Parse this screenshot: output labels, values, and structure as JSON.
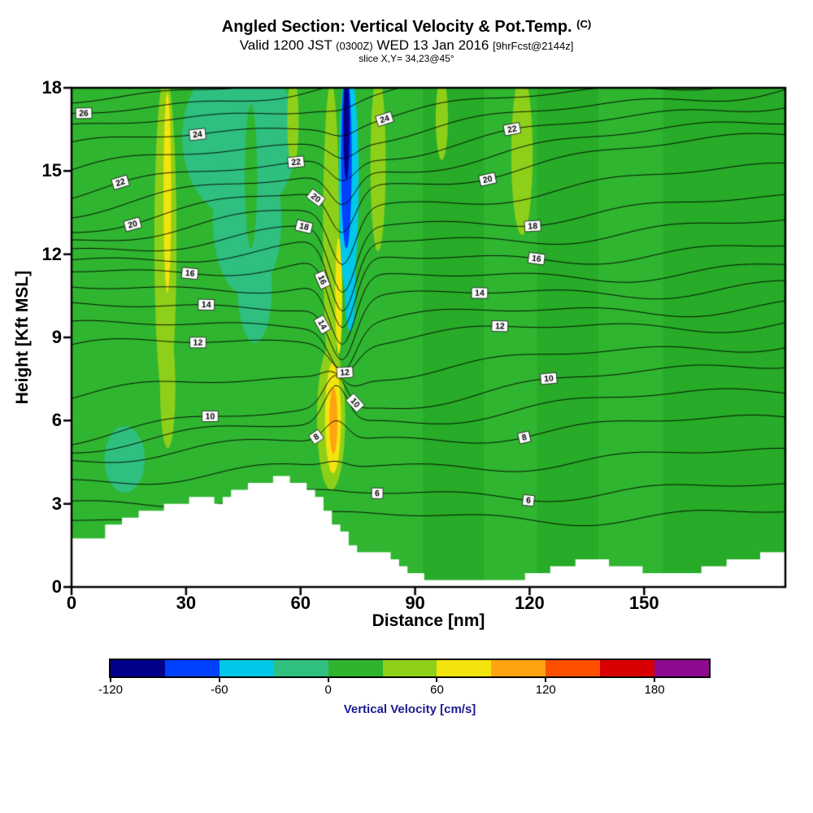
{
  "header": {
    "title": "Angled Section: Vertical Velocity & Pot.Temp.",
    "title_unit": "(C)",
    "valid_main_1": "Valid 1200 JST",
    "valid_small_1": "(0300Z)",
    "valid_main_2": "WED 13 Jan 2016",
    "valid_small_2": "[9hrFcst@2144z]",
    "slice": "slice X,Y= 34,23@45°"
  },
  "axes": {
    "x": {
      "label": "Distance [nm]",
      "ticks": [
        0,
        30,
        60,
        90,
        120,
        150
      ]
    },
    "y": {
      "label": "Height [Kft MSL]",
      "ticks": [
        0,
        3,
        6,
        9,
        12,
        15,
        18
      ]
    }
  },
  "colorbar": {
    "label": "Vertical Velocity [cm/s]",
    "tick_values": [
      -120,
      -60,
      0,
      60,
      120,
      180
    ],
    "value_range": [
      -120,
      210
    ],
    "segment_colors": [
      "#00008b",
      "#0040ff",
      "#00c8e8",
      "#2fbf7f",
      "#2eb42e",
      "#8ed019",
      "#f3e40e",
      "#ffa310",
      "#ff5000",
      "#d80000",
      "#8e0a8e"
    ]
  },
  "chart_data": {
    "type": "filled_contour_cross_section",
    "title": "Angled Section: Vertical Velocity & Pot.Temp. (C)",
    "subtitle": "Valid 1200 JST (0300Z) WED 13 Jan 2016 [9hrFcst@2144z]",
    "slice": "slice X,Y= 34,23@45°",
    "x_label": "Distance [nm]",
    "y_label": "Height [Kft MSL]",
    "x_range": [
      0,
      187
    ],
    "y_range": [
      0,
      18
    ],
    "x_ticks": [
      0,
      30,
      60,
      90,
      120,
      150
    ],
    "y_ticks": [
      0,
      3,
      6,
      9,
      12,
      15,
      18
    ],
    "shaded_variable": "Vertical Velocity [cm/s]",
    "shade_levels": [
      -120,
      -90,
      -60,
      -30,
      0,
      30,
      60,
      90,
      120,
      150,
      180,
      210
    ],
    "shade_colors": [
      "#00008b",
      "#0040ff",
      "#00c8e8",
      "#2fbf7f",
      "#2eb42e",
      "#8ed019",
      "#f3e40e",
      "#ffa310",
      "#ff5000",
      "#d80000",
      "#8e0a8e"
    ],
    "background_color": "#30b530",
    "background_band_cms": [
      0,
      30
    ],
    "contour_variable": "Potential Temperature [C]",
    "contour_interval": 1,
    "contour_levels": [
      5,
      6,
      7,
      8,
      9,
      10,
      11,
      12,
      13,
      14,
      15,
      16,
      17,
      18,
      19,
      20,
      21,
      22,
      23,
      24,
      25,
      26,
      27
    ],
    "contour_left_heights_kft": [
      2.4,
      3.1,
      3.9,
      4.7,
      5.1,
      5.4,
      6.9,
      8.6,
      9.3,
      10.0,
      10.7,
      11.35,
      11.8,
      12.2,
      12.6,
      13.0,
      13.6,
      14.2,
      15.0,
      15.8,
      16.4,
      16.9,
      17.4
    ],
    "contour_right_heights_kft": [
      2.6,
      3.57,
      4.85,
      6.12,
      7.2,
      8.24,
      8.9,
      9.6,
      10.2,
      10.88,
      11.5,
      12.2,
      13.1,
      13.98,
      15.2,
      16.43,
      17.0,
      17.6,
      18.1,
      18.6,
      19.5,
      20.4,
      21.3
    ],
    "fold": {
      "x_center": 71,
      "width": 4.8,
      "max_dip_kft": 2.6,
      "level_center": 16.5,
      "level_spread": 5
    },
    "updraft_bump": {
      "x_center": 69.5,
      "width": 4.3,
      "max_rise_kft": 1.7,
      "level_center": 9.5,
      "level_spread": 1.8
    },
    "wiggle": [
      [
        0.22,
        16,
        0.55
      ],
      [
        0.12,
        7.5,
        1.1
      ]
    ],
    "contour_labels": [
      [
        26,
        3.2
      ],
      [
        24,
        33
      ],
      [
        24,
        82
      ],
      [
        22,
        12.8
      ],
      [
        22,
        58.8
      ],
      [
        22,
        115.4
      ],
      [
        20,
        16
      ],
      [
        20,
        64
      ],
      [
        20,
        109
      ],
      [
        18,
        60.9
      ],
      [
        18,
        120.8
      ],
      [
        16,
        31
      ],
      [
        16,
        65.7
      ],
      [
        16,
        121.8
      ],
      [
        14,
        35.3
      ],
      [
        14,
        65.7
      ],
      [
        14,
        106.9
      ],
      [
        12,
        33.1
      ],
      [
        12,
        71.6
      ],
      [
        12,
        112.2
      ],
      [
        10,
        36.3
      ],
      [
        10,
        74.3
      ],
      [
        10,
        125
      ],
      [
        8,
        64.1
      ],
      [
        8,
        118.6
      ],
      [
        6,
        80.1
      ],
      [
        6,
        119.7
      ]
    ],
    "terrain_profile_kft": [
      [
        0,
        1.75
      ],
      [
        7.5,
        1.75
      ],
      [
        9.6,
        2.1
      ],
      [
        13.9,
        2.5
      ],
      [
        19.2,
        2.7
      ],
      [
        25.6,
        2.9
      ],
      [
        29.9,
        3.1
      ],
      [
        35.3,
        3.3
      ],
      [
        39.5,
        3.05
      ],
      [
        41.7,
        3.4
      ],
      [
        44.9,
        3.6
      ],
      [
        48.1,
        3.8
      ],
      [
        51.3,
        3.7
      ],
      [
        53.4,
        3.95
      ],
      [
        56.6,
        3.9
      ],
      [
        58.8,
        3.6
      ],
      [
        60.9,
        3.75
      ],
      [
        63,
        3.4
      ],
      [
        65.2,
        3.1
      ],
      [
        67.3,
        2.7
      ],
      [
        69.5,
        2.3
      ],
      [
        71.6,
        1.9
      ],
      [
        73.7,
        1.5
      ],
      [
        75.9,
        1.15
      ],
      [
        78,
        1.25
      ],
      [
        80.1,
        1.35
      ],
      [
        82.3,
        1.25
      ],
      [
        84.4,
        1.05
      ],
      [
        86.6,
        0.85
      ],
      [
        88.7,
        0.6
      ],
      [
        90.8,
        0.45
      ],
      [
        94,
        0.3
      ],
      [
        99.4,
        0.25
      ],
      [
        104.7,
        0.2
      ],
      [
        111.1,
        0.2
      ],
      [
        116.5,
        0.3
      ],
      [
        120.8,
        0.45
      ],
      [
        125,
        0.6
      ],
      [
        129.3,
        0.8
      ],
      [
        133.6,
        0.95
      ],
      [
        137.8,
        0.95
      ],
      [
        142.1,
        0.85
      ],
      [
        146.4,
        0.7
      ],
      [
        150.6,
        0.55
      ],
      [
        154.9,
        0.45
      ],
      [
        159.2,
        0.5
      ],
      [
        163.5,
        0.6
      ],
      [
        168.8,
        0.75
      ],
      [
        174.2,
        0.95
      ],
      [
        179.5,
        1.1
      ],
      [
        183.8,
        1.25
      ],
      [
        187,
        1.3
      ]
    ],
    "shade_columns": [
      {
        "x0": 92,
        "x1": 108,
        "color": "#28ab28"
      },
      {
        "x0": 122,
        "x1": 138,
        "color": "#28ab28"
      },
      {
        "x0": 155,
        "x1": 187,
        "color": "#28ab28"
      }
    ],
    "velocity_features": [
      {
        "name": "weak-downdraft-teal-patch",
        "color": "#2fbf7f",
        "ellipses": [
          [
            44,
            16.2,
            15,
            2.9
          ],
          [
            46,
            13.2,
            9,
            2.7
          ],
          [
            48,
            10.8,
            4.5,
            2.0
          ],
          [
            13.9,
            4.6,
            5.3,
            1.2
          ]
        ]
      },
      {
        "name": "embedded-green-wisp",
        "color": "#30b530",
        "ellipses": [
          [
            47,
            14.8,
            1.6,
            2.6
          ]
        ]
      },
      {
        "name": "updraft-light-green-streaks",
        "color": "#8ed019",
        "ellipses": [
          [
            24.6,
            12.5,
            2.9,
            6.0
          ],
          [
            25.2,
            7.2,
            2.0,
            2.2
          ],
          [
            68,
            12.8,
            2.1,
            5.4
          ],
          [
            68,
            6.1,
            3.7,
            2.6
          ],
          [
            80.3,
            15.3,
            2.0,
            3.2
          ],
          [
            118,
            15.6,
            2.8,
            2.9
          ],
          [
            97,
            16.9,
            1.6,
            1.5
          ],
          [
            58,
            16.8,
            1.5,
            1.7
          ]
        ]
      },
      {
        "name": "updraft-yellow-cores",
        "color": "#f3e40e",
        "ellipses": [
          [
            25.1,
            14.2,
            1.0,
            3.6
          ],
          [
            68.5,
            6.1,
            2.1,
            2.0
          ],
          [
            70,
            10.5,
            0.9,
            2.1
          ]
        ]
      },
      {
        "name": "updraft-orange-core",
        "color": "#ffa310",
        "ellipses": [
          [
            68.6,
            6.0,
            1.05,
            1.2
          ]
        ]
      },
      {
        "name": "downdraft-cyan-sheath",
        "color": "#00c8e8",
        "ellipses": [
          [
            72.6,
            14.6,
            2.6,
            4.2
          ],
          [
            73,
            10.8,
            1.4,
            1.6
          ]
        ]
      },
      {
        "name": "downdraft-blue-streak",
        "color": "#0040ff",
        "ellipses": [
          [
            72,
            15.4,
            1.4,
            3.2
          ]
        ]
      },
      {
        "name": "downdraft-dark-blue-core",
        "color": "#00008b",
        "ellipses": [
          [
            72,
            16.6,
            0.8,
            1.9
          ]
        ]
      }
    ],
    "terrain_color": "#ffffff"
  }
}
